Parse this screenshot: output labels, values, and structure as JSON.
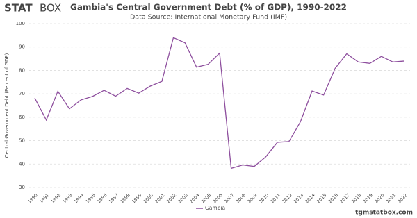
{
  "logo": {
    "bold": "STAT",
    "light": "BOX"
  },
  "footer": "tgmstatbox.com",
  "chart_data": {
    "type": "line",
    "title": "Gambia's Central Government Debt (% of GDP), 1990-2022",
    "subtitle": "Data Source: International Monetary Fund (IMF)",
    "y_label": "Central Government Debt (Percent of GDP)",
    "x": [
      "1990",
      "1991",
      "1992",
      "1993",
      "1994",
      "1995",
      "1996",
      "1997",
      "1998",
      "1999",
      "2000",
      "2001",
      "2002",
      "2003",
      "2004",
      "2005",
      "2006",
      "2007",
      "2008",
      "2009",
      "2010",
      "2011",
      "2012",
      "2013",
      "2014",
      "2015",
      "2016",
      "2017",
      "2018",
      "2019",
      "2020",
      "2021",
      "2022"
    ],
    "series": [
      {
        "name": "Gambia",
        "color": "#8e4f9e",
        "values": [
          68.2,
          58.8,
          71.1,
          63.6,
          67.4,
          68.9,
          71.5,
          69.0,
          72.3,
          70.3,
          73.3,
          75.3,
          94.0,
          91.8,
          81.4,
          82.6,
          87.4,
          38.2,
          39.6,
          39.0,
          43.1,
          49.3,
          49.6,
          58.1,
          71.2,
          69.5,
          80.9,
          87.1,
          83.6,
          83.0,
          86.0,
          83.6,
          84.0
        ]
      }
    ],
    "ylim": [
      30,
      100
    ],
    "yticks": [
      30,
      40,
      50,
      60,
      70,
      80,
      90,
      100
    ],
    "grid": true,
    "legend": "bottom"
  }
}
